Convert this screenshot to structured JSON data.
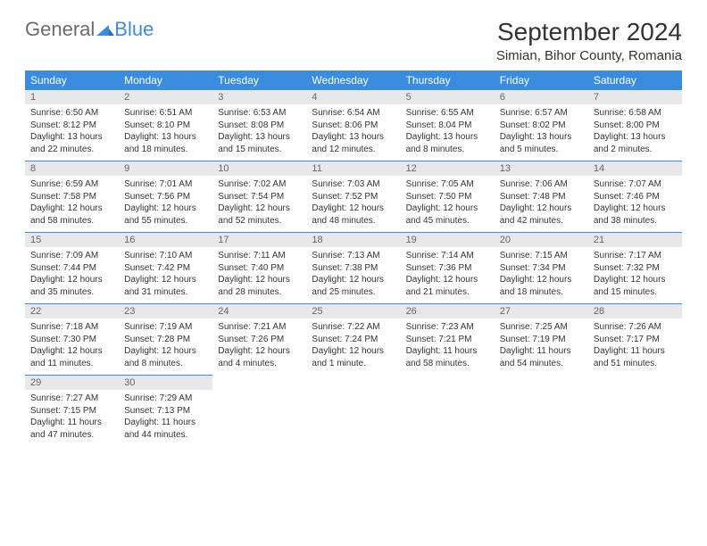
{
  "brand": {
    "part1": "General",
    "part2": "Blue"
  },
  "title": "September 2024",
  "location": "Simian, Bihor County, Romania",
  "colors": {
    "header_bg": "#3a8dde",
    "header_text": "#ffffff",
    "daynum_bg": "#e8e8e8",
    "daynum_text": "#666666",
    "body_text": "#333333",
    "logo_gray": "#6b6b6b",
    "logo_blue": "#3a8dde"
  },
  "typography": {
    "title_fontsize": 28,
    "location_fontsize": 15,
    "header_fontsize": 12,
    "daynum_fontsize": 11,
    "cell_fontsize": 10
  },
  "weekdays": [
    "Sunday",
    "Monday",
    "Tuesday",
    "Wednesday",
    "Thursday",
    "Friday",
    "Saturday"
  ],
  "weeks": [
    [
      {
        "n": "1",
        "sr": "Sunrise: 6:50 AM",
        "ss": "Sunset: 8:12 PM",
        "dl": "Daylight: 13 hours and 22 minutes."
      },
      {
        "n": "2",
        "sr": "Sunrise: 6:51 AM",
        "ss": "Sunset: 8:10 PM",
        "dl": "Daylight: 13 hours and 18 minutes."
      },
      {
        "n": "3",
        "sr": "Sunrise: 6:53 AM",
        "ss": "Sunset: 8:08 PM",
        "dl": "Daylight: 13 hours and 15 minutes."
      },
      {
        "n": "4",
        "sr": "Sunrise: 6:54 AM",
        "ss": "Sunset: 8:06 PM",
        "dl": "Daylight: 13 hours and 12 minutes."
      },
      {
        "n": "5",
        "sr": "Sunrise: 6:55 AM",
        "ss": "Sunset: 8:04 PM",
        "dl": "Daylight: 13 hours and 8 minutes."
      },
      {
        "n": "6",
        "sr": "Sunrise: 6:57 AM",
        "ss": "Sunset: 8:02 PM",
        "dl": "Daylight: 13 hours and 5 minutes."
      },
      {
        "n": "7",
        "sr": "Sunrise: 6:58 AM",
        "ss": "Sunset: 8:00 PM",
        "dl": "Daylight: 13 hours and 2 minutes."
      }
    ],
    [
      {
        "n": "8",
        "sr": "Sunrise: 6:59 AM",
        "ss": "Sunset: 7:58 PM",
        "dl": "Daylight: 12 hours and 58 minutes."
      },
      {
        "n": "9",
        "sr": "Sunrise: 7:01 AM",
        "ss": "Sunset: 7:56 PM",
        "dl": "Daylight: 12 hours and 55 minutes."
      },
      {
        "n": "10",
        "sr": "Sunrise: 7:02 AM",
        "ss": "Sunset: 7:54 PM",
        "dl": "Daylight: 12 hours and 52 minutes."
      },
      {
        "n": "11",
        "sr": "Sunrise: 7:03 AM",
        "ss": "Sunset: 7:52 PM",
        "dl": "Daylight: 12 hours and 48 minutes."
      },
      {
        "n": "12",
        "sr": "Sunrise: 7:05 AM",
        "ss": "Sunset: 7:50 PM",
        "dl": "Daylight: 12 hours and 45 minutes."
      },
      {
        "n": "13",
        "sr": "Sunrise: 7:06 AM",
        "ss": "Sunset: 7:48 PM",
        "dl": "Daylight: 12 hours and 42 minutes."
      },
      {
        "n": "14",
        "sr": "Sunrise: 7:07 AM",
        "ss": "Sunset: 7:46 PM",
        "dl": "Daylight: 12 hours and 38 minutes."
      }
    ],
    [
      {
        "n": "15",
        "sr": "Sunrise: 7:09 AM",
        "ss": "Sunset: 7:44 PM",
        "dl": "Daylight: 12 hours and 35 minutes."
      },
      {
        "n": "16",
        "sr": "Sunrise: 7:10 AM",
        "ss": "Sunset: 7:42 PM",
        "dl": "Daylight: 12 hours and 31 minutes."
      },
      {
        "n": "17",
        "sr": "Sunrise: 7:11 AM",
        "ss": "Sunset: 7:40 PM",
        "dl": "Daylight: 12 hours and 28 minutes."
      },
      {
        "n": "18",
        "sr": "Sunrise: 7:13 AM",
        "ss": "Sunset: 7:38 PM",
        "dl": "Daylight: 12 hours and 25 minutes."
      },
      {
        "n": "19",
        "sr": "Sunrise: 7:14 AM",
        "ss": "Sunset: 7:36 PM",
        "dl": "Daylight: 12 hours and 21 minutes."
      },
      {
        "n": "20",
        "sr": "Sunrise: 7:15 AM",
        "ss": "Sunset: 7:34 PM",
        "dl": "Daylight: 12 hours and 18 minutes."
      },
      {
        "n": "21",
        "sr": "Sunrise: 7:17 AM",
        "ss": "Sunset: 7:32 PM",
        "dl": "Daylight: 12 hours and 15 minutes."
      }
    ],
    [
      {
        "n": "22",
        "sr": "Sunrise: 7:18 AM",
        "ss": "Sunset: 7:30 PM",
        "dl": "Daylight: 12 hours and 11 minutes."
      },
      {
        "n": "23",
        "sr": "Sunrise: 7:19 AM",
        "ss": "Sunset: 7:28 PM",
        "dl": "Daylight: 12 hours and 8 minutes."
      },
      {
        "n": "24",
        "sr": "Sunrise: 7:21 AM",
        "ss": "Sunset: 7:26 PM",
        "dl": "Daylight: 12 hours and 4 minutes."
      },
      {
        "n": "25",
        "sr": "Sunrise: 7:22 AM",
        "ss": "Sunset: 7:24 PM",
        "dl": "Daylight: 12 hours and 1 minute."
      },
      {
        "n": "26",
        "sr": "Sunrise: 7:23 AM",
        "ss": "Sunset: 7:21 PM",
        "dl": "Daylight: 11 hours and 58 minutes."
      },
      {
        "n": "27",
        "sr": "Sunrise: 7:25 AM",
        "ss": "Sunset: 7:19 PM",
        "dl": "Daylight: 11 hours and 54 minutes."
      },
      {
        "n": "28",
        "sr": "Sunrise: 7:26 AM",
        "ss": "Sunset: 7:17 PM",
        "dl": "Daylight: 11 hours and 51 minutes."
      }
    ],
    [
      {
        "n": "29",
        "sr": "Sunrise: 7:27 AM",
        "ss": "Sunset: 7:15 PM",
        "dl": "Daylight: 11 hours and 47 minutes."
      },
      {
        "n": "30",
        "sr": "Sunrise: 7:29 AM",
        "ss": "Sunset: 7:13 PM",
        "dl": "Daylight: 11 hours and 44 minutes."
      },
      null,
      null,
      null,
      null,
      null
    ]
  ]
}
